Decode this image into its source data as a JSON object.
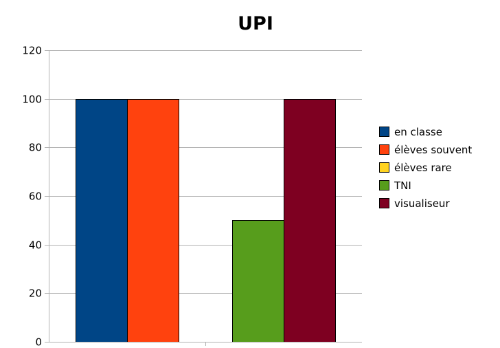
{
  "chart_data": {
    "type": "bar",
    "title": "UPI",
    "xlabel": "",
    "ylabel": "",
    "ylim": [
      0,
      120
    ],
    "yticks": [
      0,
      20,
      40,
      60,
      80,
      100,
      120
    ],
    "grid": true,
    "legend_position": "right",
    "groups": 2,
    "series": [
      {
        "name": "en classe",
        "color": "#004586",
        "values": [
          100,
          null
        ]
      },
      {
        "name": "élèves souvent",
        "color": "#ff420e",
        "values": [
          100,
          null
        ]
      },
      {
        "name": "élèves rare",
        "color": "#ffd320",
        "values": [
          null,
          null
        ]
      },
      {
        "name": "TNI",
        "color": "#579d1c",
        "values": [
          null,
          50
        ]
      },
      {
        "name": "visualiseur",
        "color": "#7e0021",
        "values": [
          null,
          100
        ]
      }
    ]
  }
}
